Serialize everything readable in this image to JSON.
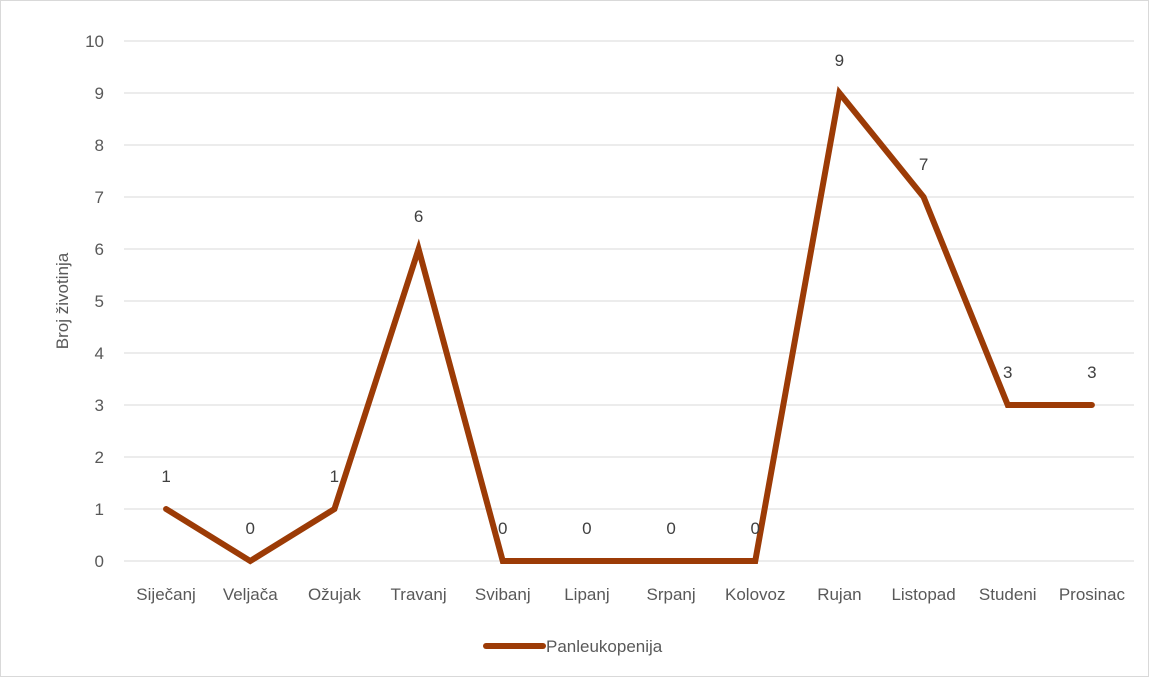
{
  "chart_data": {
    "type": "line",
    "title": "",
    "xlabel": "",
    "ylabel": "Broj životinja",
    "ylim": [
      0,
      10
    ],
    "yticks": [
      "0",
      "1",
      "2",
      "3",
      "4",
      "5",
      "6",
      "7",
      "8",
      "9",
      "10"
    ],
    "grid": true,
    "legend_position": "bottom",
    "categories": [
      "Siječanj",
      "Veljača",
      "Ožujak",
      "Travanj",
      "Svibanj",
      "Lipanj",
      "Srpanj",
      "Kolovoz",
      "Rujan",
      "Listopad",
      "Studeni",
      "Prosinac"
    ],
    "series": [
      {
        "name": "Panleukopenija",
        "color": "#9c3b06",
        "values": [
          1,
          0,
          1,
          6,
          0,
          0,
          0,
          0,
          9,
          7,
          3,
          3
        ]
      }
    ]
  }
}
